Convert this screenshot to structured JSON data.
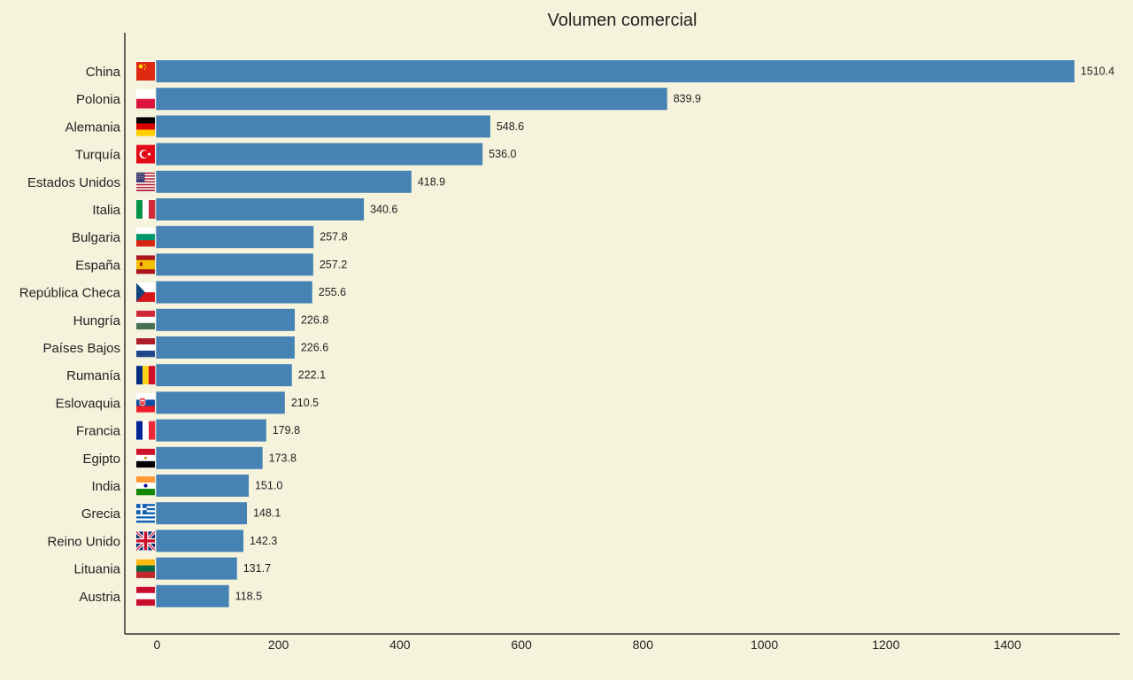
{
  "chart_data": {
    "type": "bar",
    "orientation": "horizontal",
    "title": "Volumen comercial",
    "xlabel": "",
    "ylabel": "",
    "categories": [
      "China",
      "Polonia",
      "Alemania",
      "Turquía",
      "Estados Unidos",
      "Italia",
      "Bulgaria",
      "España",
      "República Checa",
      "Hungría",
      "Países Bajos",
      "Rumanía",
      "Eslovaquia",
      "Francia",
      "Egipto",
      "India",
      "Grecia",
      "Reino Unido",
      "Lituania",
      "Austria"
    ],
    "values": [
      1510.4,
      839.9,
      548.6,
      536.0,
      418.9,
      340.6,
      257.8,
      257.2,
      255.6,
      226.8,
      226.6,
      222.1,
      210.5,
      179.8,
      173.8,
      151.0,
      148.1,
      142.3,
      131.7,
      118.5
    ],
    "value_labels": [
      "1510.4",
      "839.9",
      "548.6",
      "536.0",
      "418.9",
      "340.6",
      "257.8",
      "257.2",
      "255.6",
      "226.8",
      "226.6",
      "222.1",
      "210.5",
      "179.8",
      "173.8",
      "151.0",
      "148.1",
      "142.3",
      "131.7",
      "118.5"
    ],
    "flags": [
      "flag-china-icon",
      "flag-poland-icon",
      "flag-germany-icon",
      "flag-turkey-icon",
      "flag-usa-icon",
      "flag-italy-icon",
      "flag-bulgaria-icon",
      "flag-spain-icon",
      "flag-czechia-icon",
      "flag-hungary-icon",
      "flag-netherlands-icon",
      "flag-romania-icon",
      "flag-slovakia-icon",
      "flag-france-icon",
      "flag-egypt-icon",
      "flag-india-icon",
      "flag-greece-icon",
      "flag-uk-icon",
      "flag-lithuania-icon",
      "flag-austria-icon"
    ],
    "xticks": [
      0,
      200,
      400,
      600,
      800,
      1000,
      1200,
      1400
    ],
    "xlim": [
      -53,
      1585
    ],
    "grid": false,
    "colors": {
      "bar": "#4682b4",
      "background": "#f5f3dc",
      "axis": "#333333",
      "text": "#222222"
    }
  }
}
